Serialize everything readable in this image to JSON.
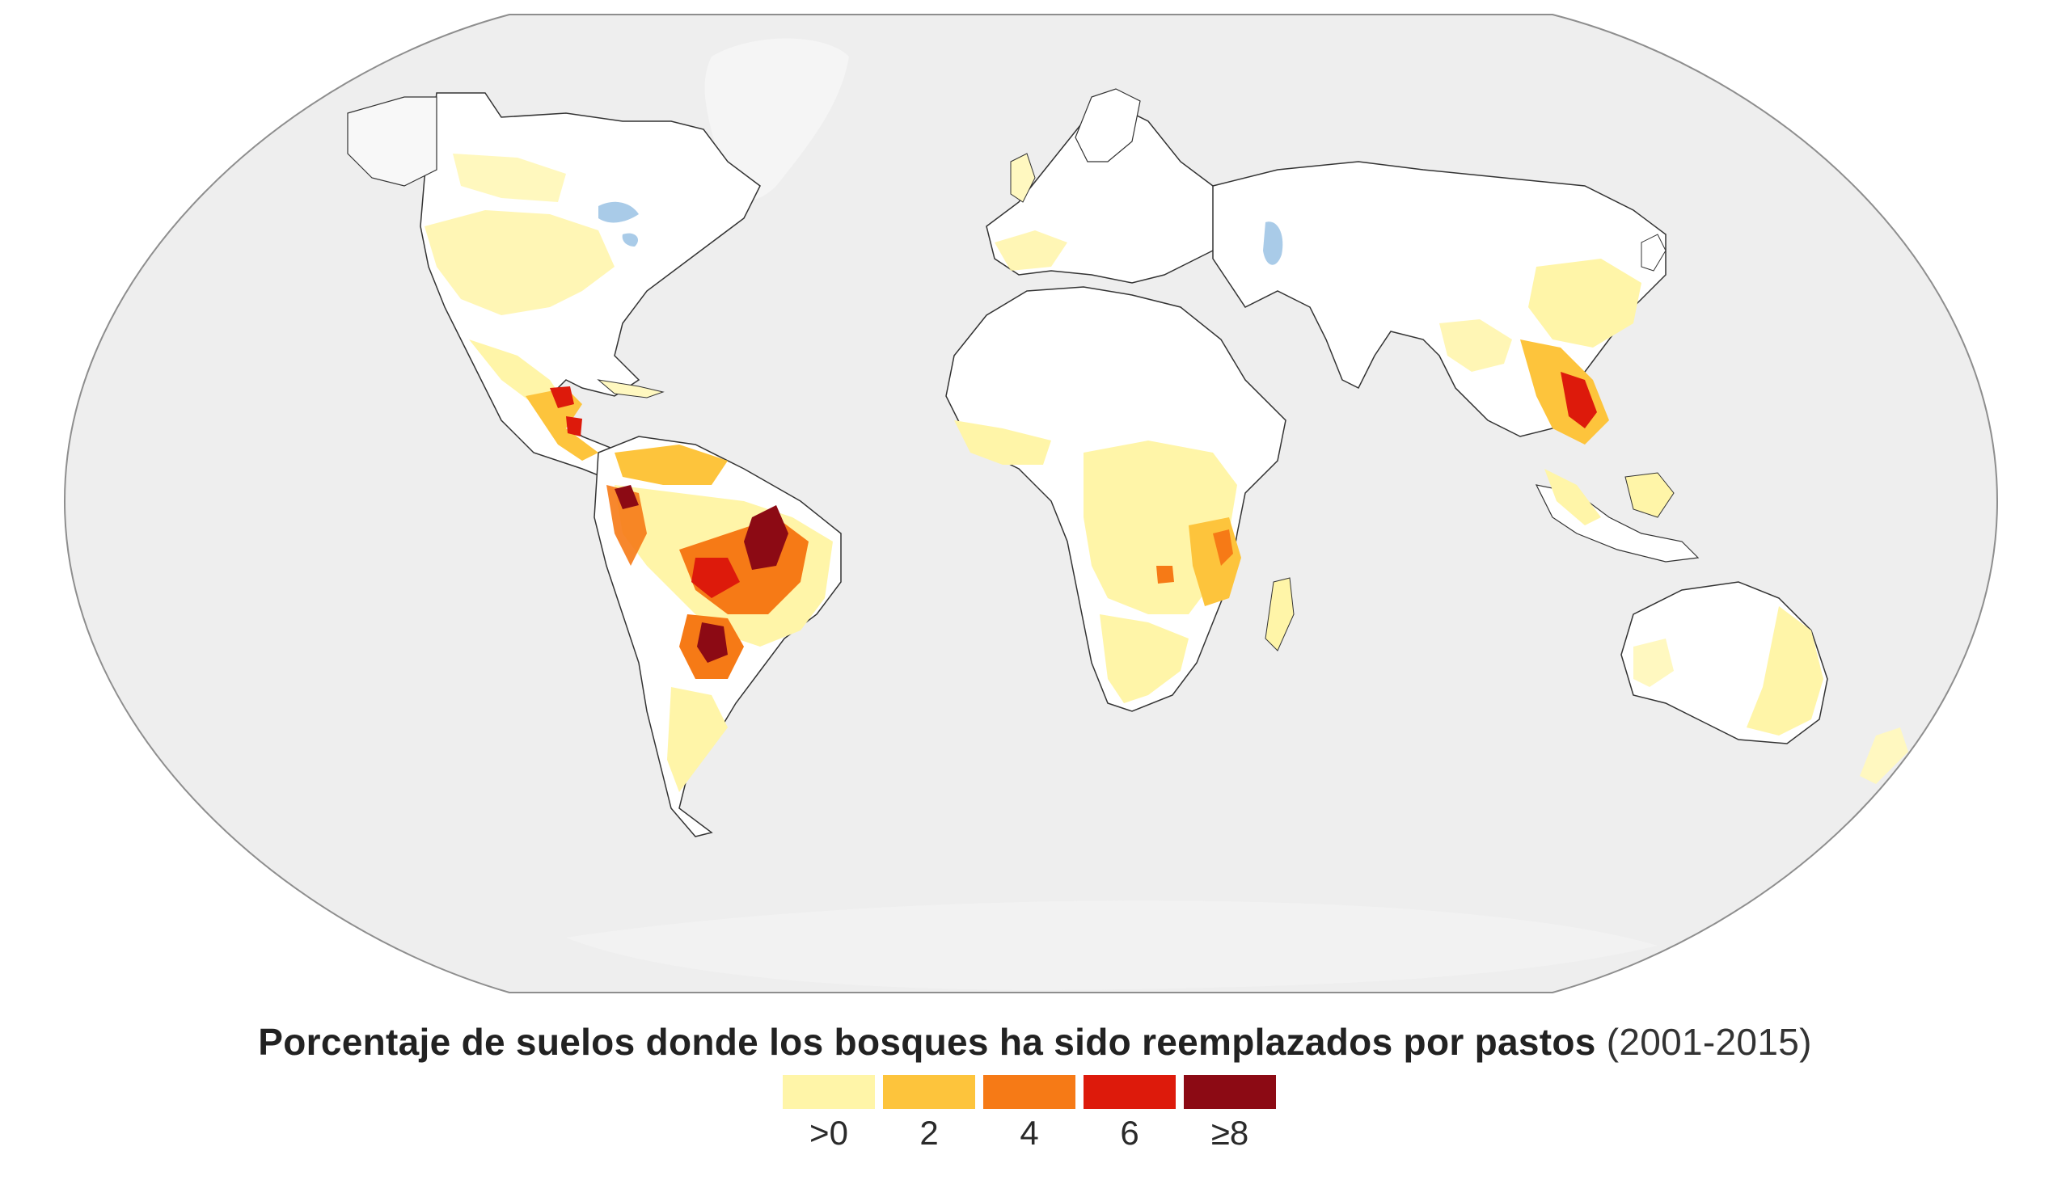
{
  "map": {
    "projection": "Robinson",
    "ocean_color": "#eeeeee",
    "land_color": "#ffffff",
    "border_color": "#222222",
    "water_color": "#a9cbe8"
  },
  "caption": {
    "bold": "Porcentaje de suelos donde los bosques ha sido reemplazados por pastos",
    "light": "(2001-2015)"
  },
  "legend": {
    "items": [
      {
        "label": ">0",
        "color": "#fff5a8"
      },
      {
        "label": "2",
        "color": "#fdc43c"
      },
      {
        "label": "4",
        "color": "#f67a16"
      },
      {
        "label": "6",
        "color": "#dd1a0b"
      },
      {
        "label": "≥8",
        "color": "#8c0a14"
      }
    ]
  }
}
